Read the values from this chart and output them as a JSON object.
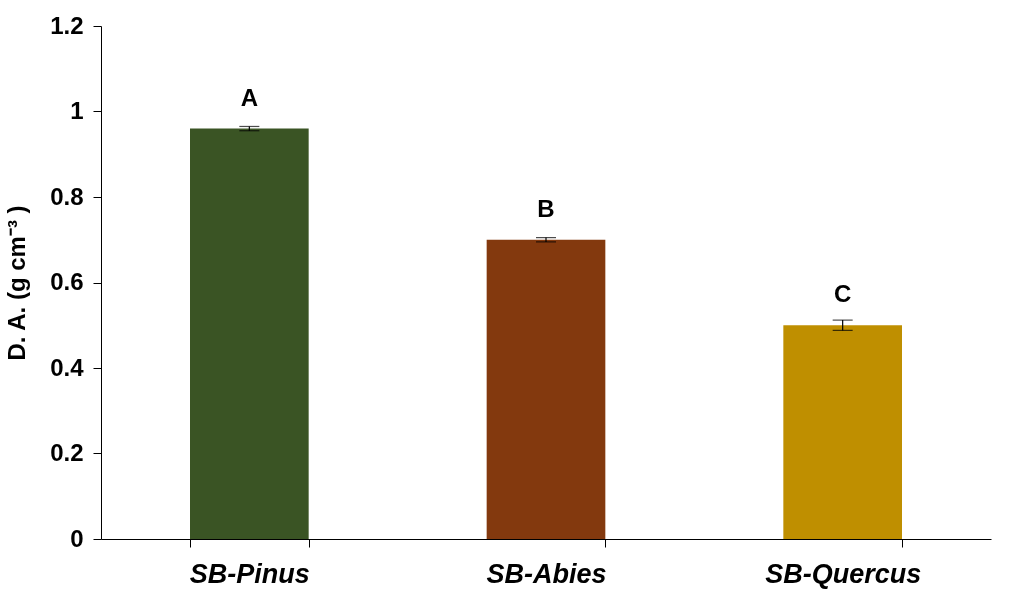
{
  "chart_data": {
    "type": "bar",
    "ylabel": "D. A. (g cm⁻³ )",
    "categories": [
      "SB-Pinus",
      "SB-Abies",
      "SB-Quercus"
    ],
    "values": [
      0.96,
      0.7,
      0.5
    ],
    "colors": [
      "#3a5424",
      "#83390e",
      "#bf8f00"
    ],
    "errors": [
      0.005,
      0.005,
      0.012
    ],
    "ylim": [
      0,
      1.2
    ],
    "yticks": [
      0,
      0.2,
      0.4,
      0.6,
      0.8,
      1,
      1.2
    ],
    "grid": false,
    "annotations": [
      {
        "text": "A",
        "x": "SB-Pinus",
        "y": 0.96
      },
      {
        "text": "B",
        "x": "SB-Abies",
        "y": 0.7
      },
      {
        "text": "C",
        "x": "SB-Quercus",
        "y": 0.5
      }
    ]
  }
}
